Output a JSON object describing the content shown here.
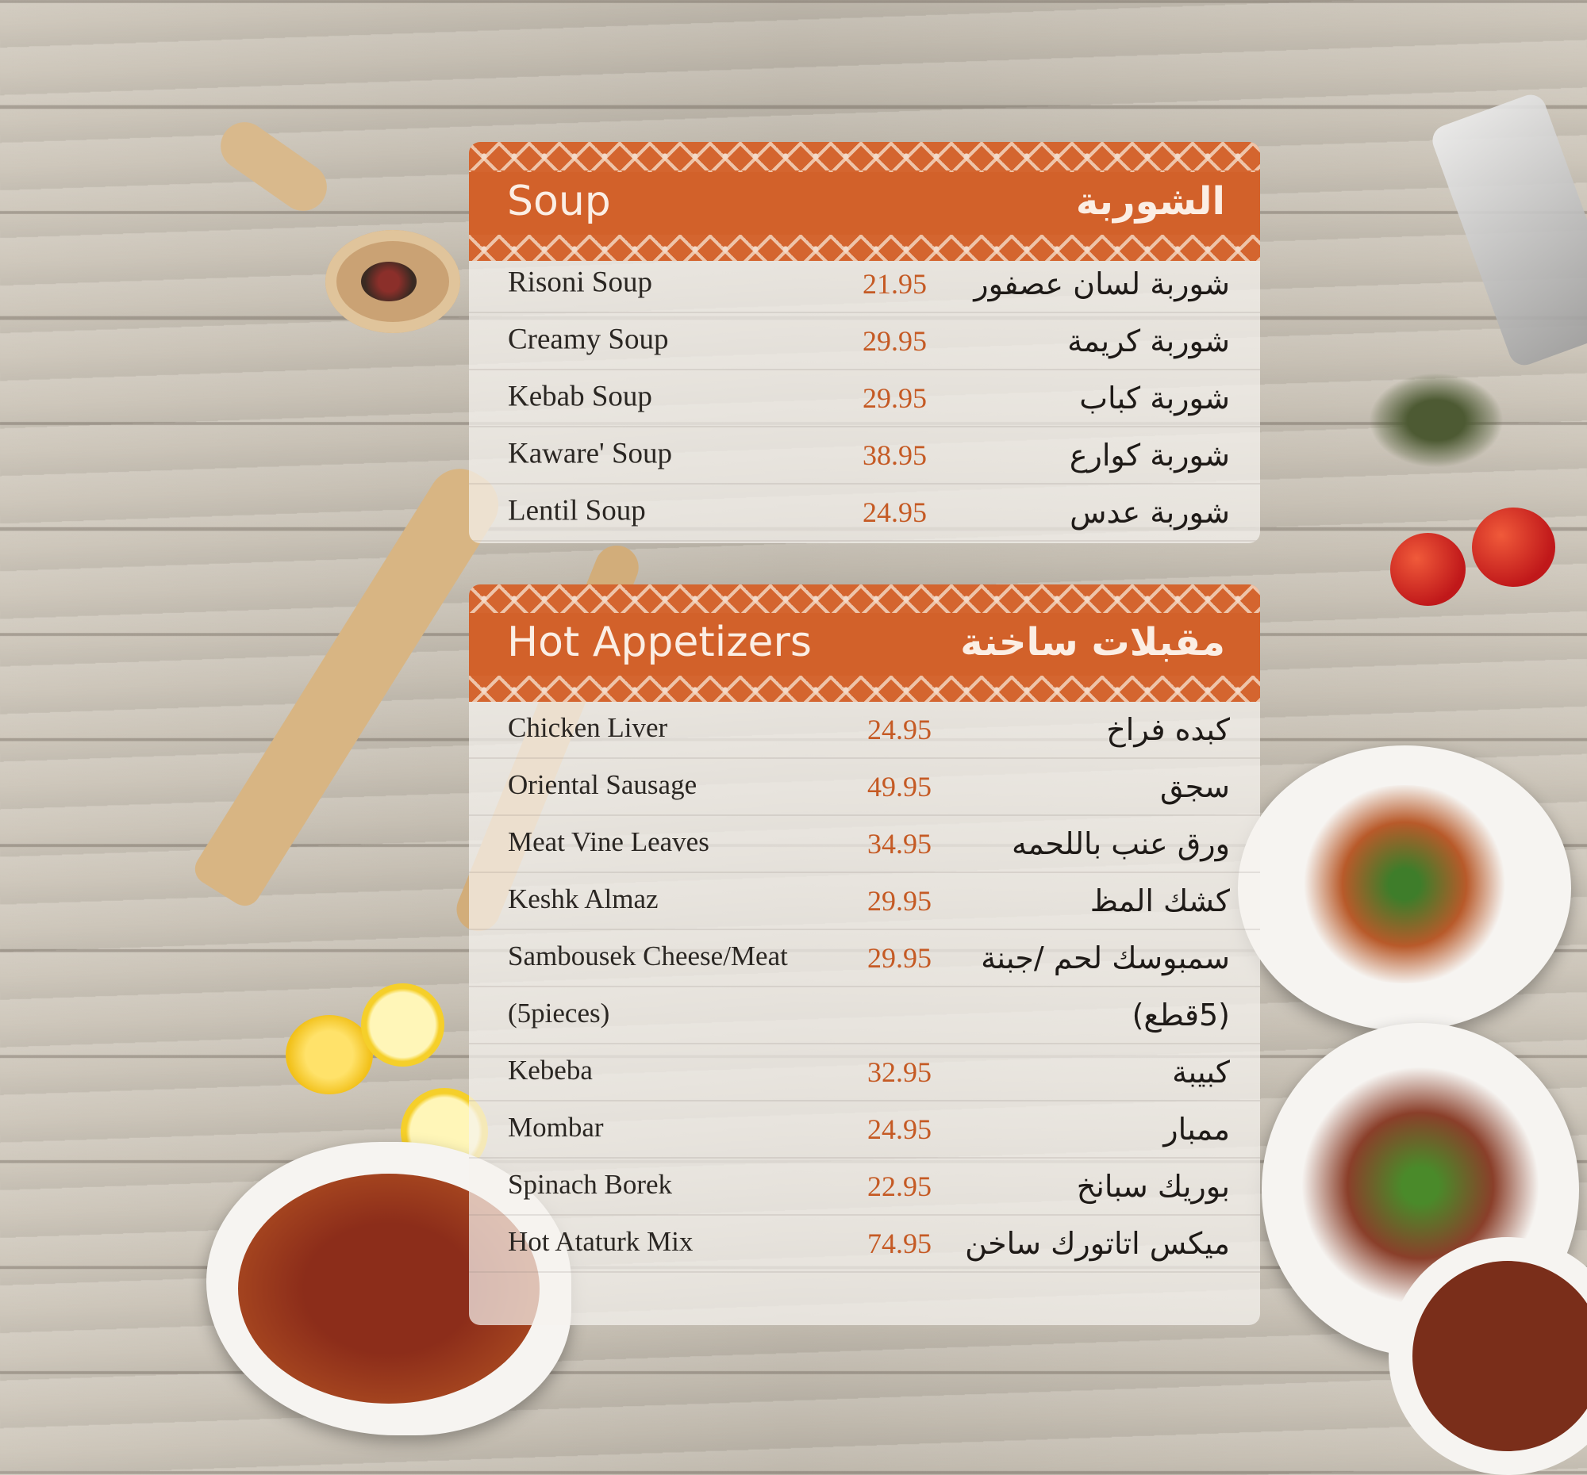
{
  "colors": {
    "accent": "#d2612a",
    "price": "#c55a24",
    "text": "#2a2622"
  },
  "sections": [
    {
      "id": "soup",
      "title_en": "Soup",
      "title_ar": "الشوربة",
      "items": [
        {
          "en": "Risoni Soup",
          "price": "21.95",
          "ar": "شوربة لسان عصفور"
        },
        {
          "en": "Creamy Soup",
          "price": "29.95",
          "ar": "شوربة كريمة"
        },
        {
          "en": "Kebab Soup",
          "price": "29.95",
          "ar": "شوربة كباب"
        },
        {
          "en": "Kaware' Soup",
          "price": "38.95",
          "ar": "شوربة كوارع"
        },
        {
          "en": "Lentil Soup",
          "price": "24.95",
          "ar": "شوربة عدس"
        }
      ]
    },
    {
      "id": "hot",
      "title_en": "Hot Appetizers",
      "title_ar": "مقبلات ساخنة",
      "items": [
        {
          "en": "Chicken Liver",
          "price": "24.95",
          "ar": "كبده فراخ"
        },
        {
          "en": "Oriental Sausage",
          "price": "49.95",
          "ar": "سجق"
        },
        {
          "en": "Meat Vine Leaves",
          "price": "34.95",
          "ar": "ورق عنب باللحمه"
        },
        {
          "en": "Keshk Almaz",
          "price": "29.95",
          "ar": "كشك المظ"
        },
        {
          "en": "Sambousek Cheese/Meat",
          "price": "29.95",
          "ar": "سمبوسك لحم /جبنة"
        },
        {
          "en": "(5pieces)",
          "price": "",
          "ar": "(5قطع)"
        },
        {
          "en": "Kebeba",
          "price": "32.95",
          "ar": "كبيبة"
        },
        {
          "en": "Mombar",
          "price": "24.95",
          "ar": "ممبار"
        },
        {
          "en": "Spinach Borek",
          "price": "22.95",
          "ar": "بوريك سبانخ"
        },
        {
          "en": "Hot Ataturk Mix",
          "price": "74.95",
          "ar": "ميكس اتاتورك ساخن"
        }
      ]
    }
  ]
}
